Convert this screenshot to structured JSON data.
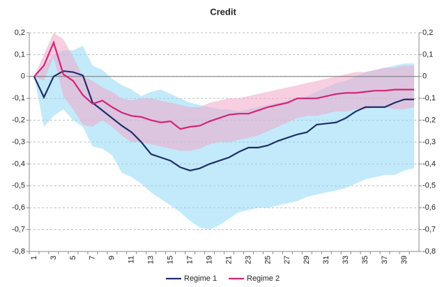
{
  "chart_data": {
    "type": "line",
    "title": "Credit",
    "categories": [
      "1",
      null,
      "3",
      null,
      "5",
      null,
      "7",
      null,
      "9",
      null,
      "11",
      null,
      "13",
      null,
      "15",
      null,
      "17",
      null,
      "19",
      null,
      "21",
      null,
      "23",
      null,
      "25",
      null,
      "27",
      null,
      "29",
      null,
      "31",
      null,
      "33",
      null,
      "35",
      null,
      "37",
      null,
      "39",
      null
    ],
    "series": [
      {
        "name": "Regime 1",
        "color": "#1f2d6b",
        "values": [
          0,
          -0.095,
          0,
          0.025,
          0.02,
          0.005,
          -0.12,
          -0.155,
          -0.19,
          -0.225,
          -0.255,
          -0.3,
          -0.355,
          -0.37,
          -0.385,
          -0.415,
          -0.43,
          -0.42,
          -0.4,
          -0.385,
          -0.37,
          -0.345,
          -0.325,
          -0.325,
          -0.315,
          -0.295,
          -0.28,
          -0.265,
          -0.255,
          -0.22,
          -0.215,
          -0.21,
          -0.19,
          -0.16,
          -0.14,
          -0.14,
          -0.14,
          -0.12,
          -0.105,
          -0.105
        ]
      },
      {
        "name": "Regime 2",
        "color": "#d4237a",
        "values": [
          0,
          0.05,
          0.155,
          0.01,
          -0.02,
          -0.085,
          -0.125,
          -0.11,
          -0.14,
          -0.165,
          -0.18,
          -0.185,
          -0.2,
          -0.21,
          -0.205,
          -0.24,
          -0.23,
          -0.225,
          -0.205,
          -0.19,
          -0.175,
          -0.17,
          -0.17,
          -0.155,
          -0.14,
          -0.13,
          -0.12,
          -0.1,
          -0.1,
          -0.1,
          -0.09,
          -0.08,
          -0.075,
          -0.075,
          -0.07,
          -0.065,
          -0.065,
          -0.06,
          -0.06,
          -0.06
        ]
      }
    ],
    "bands": [
      {
        "color": "#8fd8f5",
        "upper": [
          0,
          0.04,
          0.1,
          0.12,
          0.12,
          0.14,
          0.05,
          0.03,
          -0.01,
          -0.04,
          -0.06,
          -0.09,
          -0.07,
          -0.06,
          -0.08,
          -0.1,
          -0.12,
          -0.13,
          -0.14,
          -0.15,
          -0.15,
          -0.16,
          -0.15,
          -0.14,
          -0.13,
          -0.12,
          -0.11,
          -0.1,
          -0.09,
          -0.07,
          -0.05,
          -0.03,
          -0.02,
          0,
          0.02,
          0.03,
          0.04,
          0.05,
          0.06,
          0.06
        ],
        "lower": [
          0,
          -0.23,
          -0.18,
          -0.15,
          -0.2,
          -0.23,
          -0.32,
          -0.33,
          -0.36,
          -0.44,
          -0.46,
          -0.49,
          -0.53,
          -0.56,
          -0.59,
          -0.62,
          -0.66,
          -0.69,
          -0.7,
          -0.68,
          -0.65,
          -0.62,
          -0.61,
          -0.6,
          -0.6,
          -0.59,
          -0.58,
          -0.57,
          -0.55,
          -0.54,
          -0.53,
          -0.52,
          -0.51,
          -0.49,
          -0.47,
          -0.46,
          -0.45,
          -0.45,
          -0.43,
          -0.42
        ]
      },
      {
        "color": "#f2a6c9",
        "upper": [
          0,
          0.1,
          0.2,
          0.17,
          0.09,
          0,
          -0.02,
          -0.05,
          -0.07,
          -0.1,
          -0.11,
          -0.1,
          -0.1,
          -0.11,
          -0.12,
          -0.13,
          -0.14,
          -0.14,
          -0.12,
          -0.11,
          -0.1,
          -0.1,
          -0.09,
          -0.08,
          -0.07,
          -0.06,
          -0.05,
          -0.04,
          -0.03,
          -0.02,
          -0.01,
          0,
          0.01,
          0.02,
          0.02,
          0.03,
          0.04,
          0.04,
          0.05,
          0.05
        ],
        "lower": [
          0,
          -0.02,
          0.09,
          -0.09,
          -0.15,
          -0.22,
          -0.23,
          -0.2,
          -0.23,
          -0.27,
          -0.3,
          -0.3,
          -0.31,
          -0.32,
          -0.33,
          -0.34,
          -0.34,
          -0.33,
          -0.31,
          -0.3,
          -0.3,
          -0.29,
          -0.28,
          -0.27,
          -0.25,
          -0.23,
          -0.21,
          -0.19,
          -0.18,
          -0.18,
          -0.17,
          -0.16,
          -0.16,
          -0.15,
          -0.15,
          -0.14,
          -0.14,
          -0.15,
          -0.15,
          -0.14
        ]
      }
    ],
    "ylim": [
      -0.8,
      0.2
    ],
    "yticks": [
      {
        "value": -0.8,
        "label": "-0,8"
      },
      {
        "value": -0.7,
        "label": "-0,7"
      },
      {
        "value": -0.6,
        "label": "-0,6"
      },
      {
        "value": -0.5,
        "label": "-0,5"
      },
      {
        "value": -0.4,
        "label": "-0,4"
      },
      {
        "value": -0.3,
        "label": "-0,3"
      },
      {
        "value": -0.2,
        "label": "-0,2"
      },
      {
        "value": -0.1,
        "label": "-0,1"
      },
      0,
      {
        "value": 0.1,
        "label": "0,1"
      },
      {
        "value": 0.2,
        "label": "0,2"
      }
    ],
    "y2lim": [
      -0.8,
      0.2
    ],
    "y2ticks": [
      {
        "value": -0.8,
        "label": "-0,8"
      },
      {
        "value": -0.7,
        "label": "-0,7"
      },
      {
        "value": -0.6,
        "label": "-0,6"
      },
      {
        "value": -0.5,
        "label": "-0,5"
      },
      {
        "value": -0.4,
        "label": "-0,4"
      },
      {
        "value": -0.3,
        "label": "-0,3"
      },
      {
        "value": -0.2,
        "label": "-0,2"
      },
      {
        "value": -0.1,
        "label": "-0,1"
      },
      0,
      {
        "value": 0.1,
        "label": "0,1"
      },
      {
        "value": 0.2,
        "label": "0,2"
      }
    ],
    "grid": true,
    "legend": "bottom"
  }
}
